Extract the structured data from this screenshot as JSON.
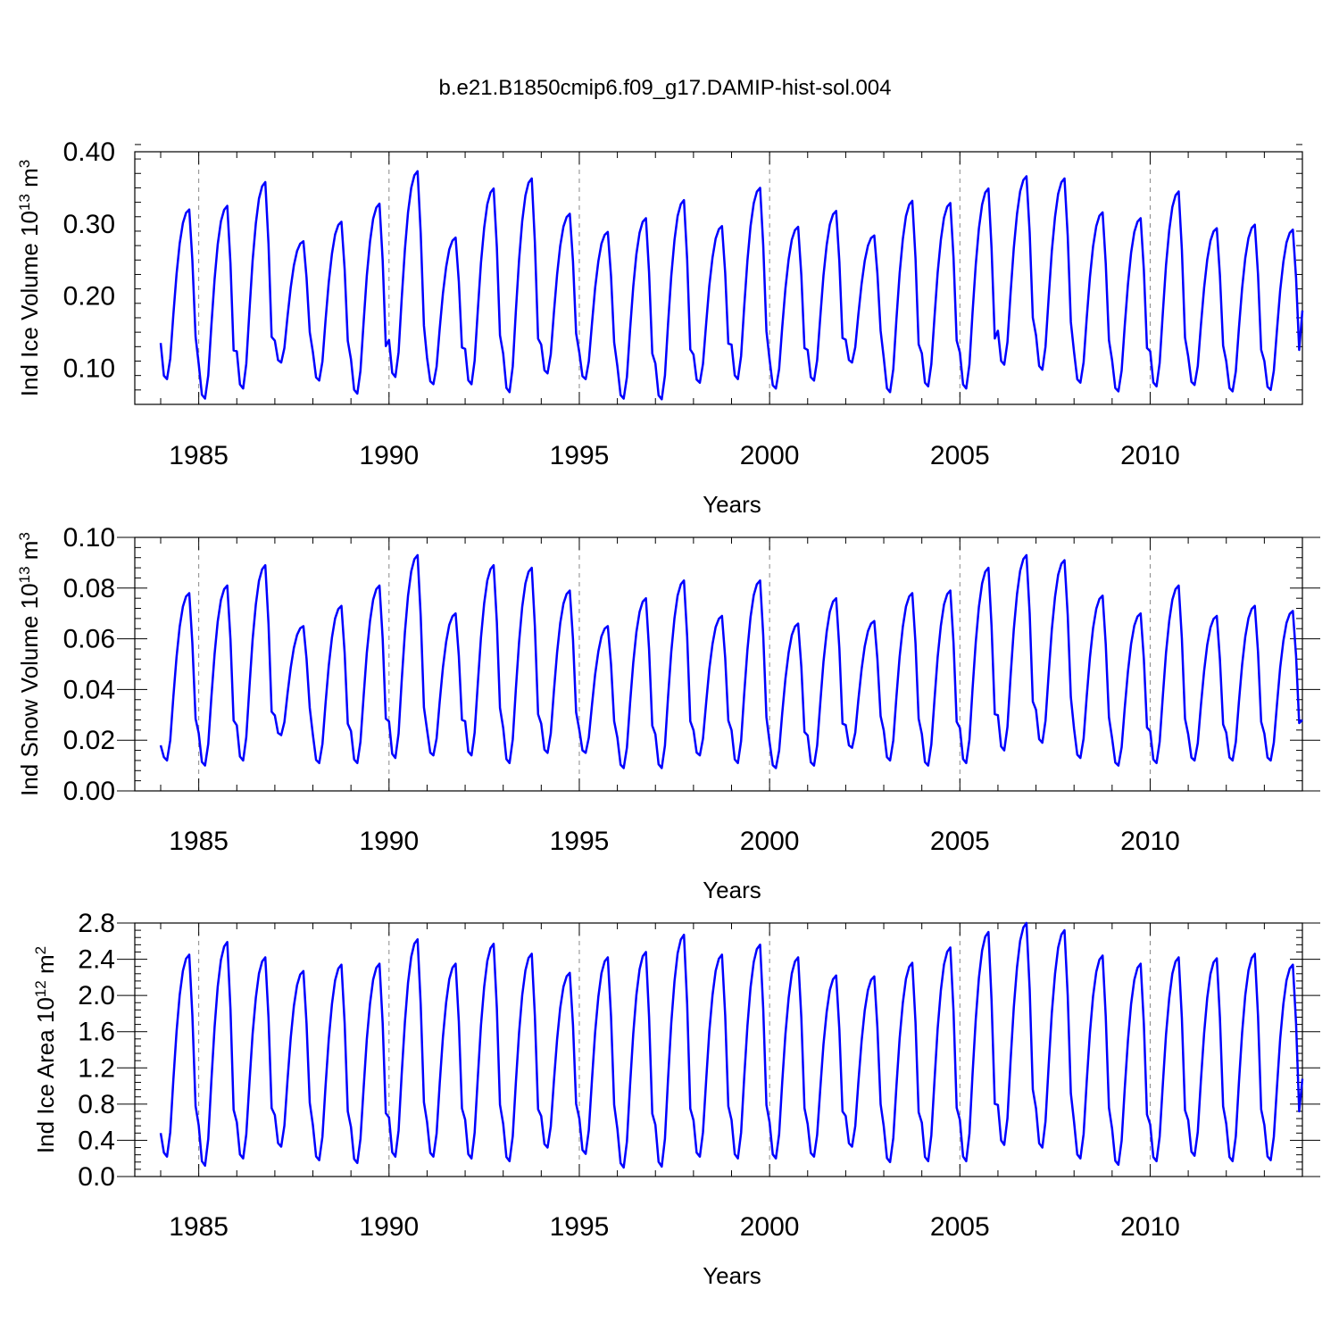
{
  "figure": {
    "title": "b.e21.B1850cmip6.f09_g17.DAMIP-hist-sol.004"
  },
  "chart_data": [
    {
      "type": "line",
      "title": "",
      "xlabel": "Years",
      "ylabel": "Ind Ice Volume 10",
      "ylabel_exp": "13",
      "ylabel_unit": " m",
      "ylabel_unit_exp": "3",
      "xlim": [
        1984.0,
        2014.0
      ],
      "ylim": [
        0.05,
        0.4
      ],
      "yticks": [
        "0.10",
        "0.20",
        "0.30",
        "0.40"
      ],
      "ytick_values": [
        0.1,
        0.2,
        0.3,
        0.4
      ],
      "xticks": [
        "1985",
        "1990",
        "1995",
        "2000",
        "2005",
        "2010"
      ],
      "xtick_values": [
        1985,
        1990,
        1995,
        2000,
        2005,
        2010
      ],
      "grid": "vertical dashed at x ticks",
      "color": "#0000ff",
      "start_year": 1984,
      "months_per_year": 12,
      "annual_min": [
        0.085,
        0.058,
        0.072,
        0.108,
        0.083,
        0.065,
        0.088,
        0.078,
        0.078,
        0.067,
        0.093,
        0.085,
        0.058,
        0.057,
        0.08,
        0.085,
        0.072,
        0.083,
        0.108,
        0.067,
        0.075,
        0.072,
        0.105,
        0.098,
        0.08,
        0.068,
        0.075,
        0.077,
        0.068,
        0.07
      ],
      "annual_max": [
        0.32,
        0.325,
        0.358,
        0.276,
        0.303,
        0.328,
        0.373,
        0.281,
        0.349,
        0.363,
        0.314,
        0.289,
        0.308,
        0.333,
        0.297,
        0.35,
        0.296,
        0.318,
        0.284,
        0.332,
        0.329,
        0.349,
        0.366,
        0.363,
        0.316,
        0.308,
        0.345,
        0.294,
        0.299,
        0.292
      ],
      "first_value": 0.135,
      "last_value": 0.18
    },
    {
      "type": "line",
      "title": "",
      "xlabel": "Years",
      "ylabel": "Ind Snow Volume 10",
      "ylabel_exp": "13",
      "ylabel_unit": " m",
      "ylabel_unit_exp": "3",
      "xlim": [
        1984.0,
        2014.0
      ],
      "ylim": [
        0.0,
        0.1
      ],
      "yticks": [
        "0.00",
        "0.02",
        "0.04",
        "0.06",
        "0.08",
        "0.10"
      ],
      "ytick_values": [
        0.0,
        0.02,
        0.04,
        0.06,
        0.08,
        0.1
      ],
      "xticks": [
        "1985",
        "1990",
        "1995",
        "2000",
        "2005",
        "2010"
      ],
      "xtick_values": [
        1985,
        1990,
        1995,
        2000,
        2005,
        2010
      ],
      "grid": "vertical dashed at x ticks",
      "color": "#0000ff",
      "start_year": 1984,
      "months_per_year": 12,
      "annual_min": [
        0.012,
        0.01,
        0.012,
        0.022,
        0.011,
        0.011,
        0.013,
        0.014,
        0.014,
        0.011,
        0.015,
        0.015,
        0.009,
        0.009,
        0.014,
        0.011,
        0.009,
        0.01,
        0.017,
        0.012,
        0.01,
        0.011,
        0.016,
        0.019,
        0.013,
        0.01,
        0.011,
        0.012,
        0.012,
        0.012
      ],
      "annual_max": [
        0.078,
        0.081,
        0.089,
        0.065,
        0.073,
        0.081,
        0.093,
        0.07,
        0.089,
        0.088,
        0.079,
        0.065,
        0.076,
        0.083,
        0.069,
        0.083,
        0.066,
        0.076,
        0.067,
        0.078,
        0.079,
        0.088,
        0.093,
        0.091,
        0.077,
        0.07,
        0.081,
        0.069,
        0.073,
        0.071
      ],
      "first_value": 0.018,
      "last_value": 0.028
    },
    {
      "type": "line",
      "title": "",
      "xlabel": "Years",
      "ylabel": "Ind Ice Area 10",
      "ylabel_exp": "12",
      "ylabel_unit": " m",
      "ylabel_unit_exp": "2",
      "xlim": [
        1984.0,
        2014.0
      ],
      "ylim": [
        0.0,
        2.8
      ],
      "yticks": [
        "0.0",
        "0.4",
        "0.8",
        "1.2",
        "1.6",
        "2.0",
        "2.4",
        "2.8"
      ],
      "ytick_values": [
        0.0,
        0.4,
        0.8,
        1.2,
        1.6,
        2.0,
        2.4,
        2.8
      ],
      "xticks": [
        "1985",
        "1990",
        "1995",
        "2000",
        "2005",
        "2010"
      ],
      "xtick_values": [
        1985,
        1990,
        1995,
        2000,
        2005,
        2010
      ],
      "grid": "vertical dashed at x ticks",
      "color": "#0000ff",
      "start_year": 1984,
      "months_per_year": 12,
      "annual_min": [
        0.22,
        0.12,
        0.2,
        0.33,
        0.18,
        0.15,
        0.22,
        0.22,
        0.2,
        0.17,
        0.32,
        0.25,
        0.1,
        0.11,
        0.22,
        0.2,
        0.2,
        0.22,
        0.33,
        0.16,
        0.17,
        0.17,
        0.35,
        0.32,
        0.2,
        0.13,
        0.17,
        0.23,
        0.17,
        0.18
      ],
      "annual_max": [
        2.45,
        2.59,
        2.42,
        2.27,
        2.34,
        2.35,
        2.62,
        2.35,
        2.57,
        2.46,
        2.25,
        2.42,
        2.48,
        2.67,
        2.45,
        2.56,
        2.42,
        2.22,
        2.21,
        2.36,
        2.53,
        2.7,
        2.8,
        2.72,
        2.44,
        2.35,
        2.42,
        2.41,
        2.46,
        2.34
      ],
      "first_value": 0.48,
      "last_value": 1.08
    }
  ]
}
